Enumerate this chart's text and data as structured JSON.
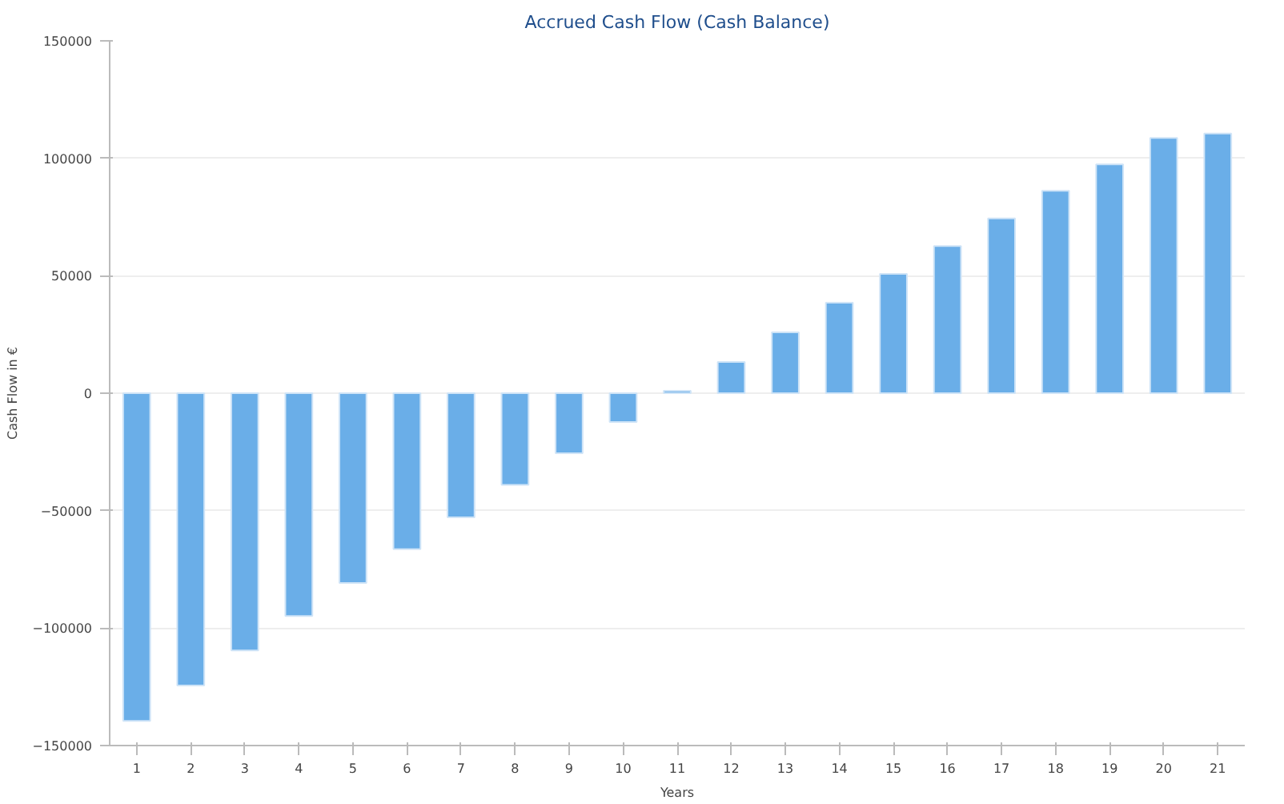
{
  "chart_data": {
    "type": "bar",
    "title": "Accrued Cash Flow (Cash Balance)",
    "xlabel": "Years",
    "ylabel": "Cash Flow in €",
    "categories": [
      "1",
      "2",
      "3",
      "4",
      "5",
      "6",
      "7",
      "8",
      "9",
      "10",
      "11",
      "12",
      "13",
      "14",
      "15",
      "16",
      "17",
      "18",
      "19",
      "20",
      "21"
    ],
    "values": [
      -139500,
      -124400,
      -109500,
      -94900,
      -80800,
      -66400,
      -52800,
      -39000,
      -25600,
      -12300,
      1000,
      13300,
      25900,
      38500,
      50800,
      62600,
      74400,
      86200,
      97400,
      108700,
      110500
    ],
    "color": "#6aaee8",
    "ylim": [
      -150000,
      150000
    ],
    "yticks": [
      -150000,
      -100000,
      -50000,
      0,
      50000,
      100000,
      150000
    ],
    "grid": "y"
  }
}
